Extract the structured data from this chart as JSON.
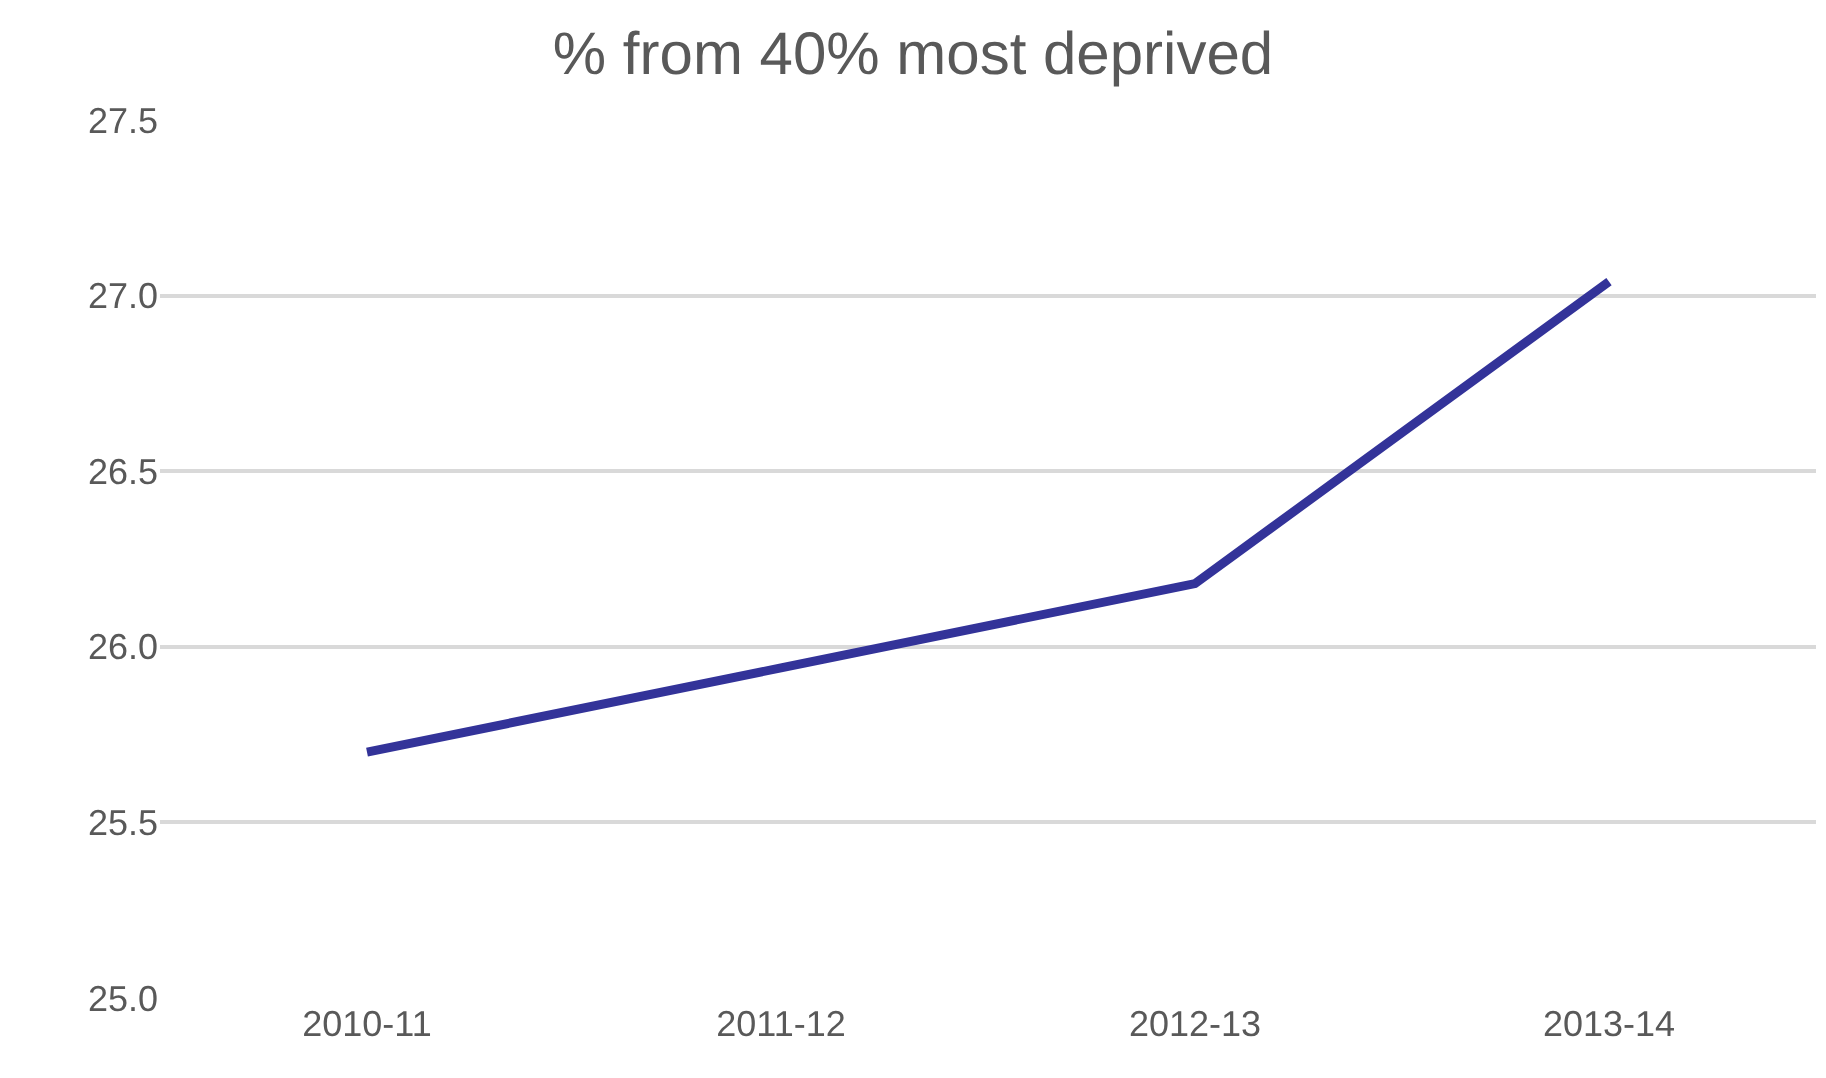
{
  "chart_data": {
    "type": "line",
    "title": "% from 40% most deprived",
    "categories": [
      "2010-11",
      "2011-12",
      "2012-13",
      "2013-14"
    ],
    "series": [
      {
        "color": "#333399",
        "values": [
          25.7,
          25.94,
          26.18,
          27.04
        ]
      }
    ],
    "ylim": [
      25.0,
      27.5
    ],
    "yticks": [
      {
        "value": 25.0,
        "label": "25.0"
      },
      {
        "value": 25.5,
        "label": "25.5"
      },
      {
        "value": 26.0,
        "label": "26.0"
      },
      {
        "value": 26.5,
        "label": "26.5"
      },
      {
        "value": 27.0,
        "label": "27.0"
      },
      {
        "value": 27.5,
        "label": "27.5"
      }
    ],
    "grid": "y",
    "legend": false,
    "marker": "none",
    "line_style": "solid"
  }
}
